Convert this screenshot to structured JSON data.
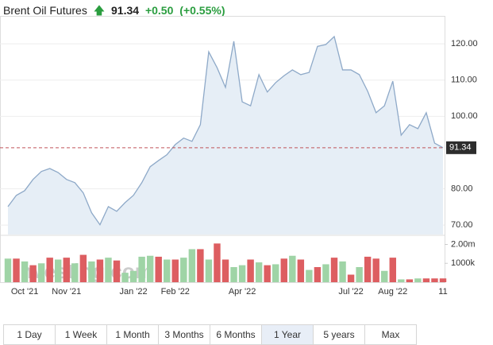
{
  "header": {
    "title": "Brent Oil Futures",
    "price": 91.34,
    "change": "+0.50",
    "change_percent": "(+0.55%)",
    "change_color": "#2a9d3f"
  },
  "chart_data": [
    {
      "type": "area",
      "color": "#8ea9c8",
      "fill": "#e6eef6",
      "grid": true,
      "categories": [
        null,
        null,
        "Oct '21",
        null,
        null,
        null,
        null,
        "Nov '21",
        null,
        null,
        null,
        null,
        null,
        null,
        null,
        "Jan '22",
        null,
        null,
        null,
        null,
        "Feb '22",
        null,
        null,
        null,
        null,
        null,
        null,
        null,
        "Apr '22",
        null,
        null,
        null,
        null,
        null,
        null,
        null,
        null,
        null,
        null,
        null,
        null,
        "Jul '22",
        null,
        null,
        null,
        null,
        "Aug '22",
        null,
        null,
        null,
        null,
        null,
        "11"
      ],
      "values": [
        75.1,
        78.2,
        79.5,
        82.6,
        84.8,
        85.6,
        84.5,
        82.6,
        81.7,
        78.9,
        73.4,
        70.1,
        75.1,
        73.8,
        76.2,
        78.2,
        81.7,
        86.1,
        87.8,
        89.4,
        92.2,
        94.0,
        93.1,
        97.7,
        117.8,
        113.4,
        108.0,
        120.7,
        104.0,
        102.9,
        111.5,
        106.7,
        109.3,
        111.2,
        112.8,
        111.5,
        112.1,
        119.3,
        119.8,
        122.0,
        112.8,
        112.8,
        111.5,
        106.9,
        101.0,
        102.9,
        109.7,
        94.8,
        97.7,
        96.6,
        101.0,
        92.6,
        91.34
      ],
      "ylim": [
        67.4,
        127.7
      ],
      "yticks": [
        {
          "value": 70,
          "label": "70.00"
        },
        {
          "value": 80,
          "label": "80.00"
        },
        {
          "value": 100,
          "label": "100.00"
        },
        {
          "value": 110,
          "label": "110.00"
        },
        {
          "value": 120,
          "label": "120.00"
        }
      ],
      "last_line_color": "#c0555a",
      "watermark": "Investing.com"
    },
    {
      "type": "bar",
      "values": [
        1250000,
        1250000,
        1100000,
        900000,
        1000000,
        1300000,
        1200000,
        1300000,
        1000000,
        1450000,
        1100000,
        1200000,
        1300000,
        1150000,
        500000,
        600000,
        1350000,
        1400000,
        1350000,
        1200000,
        1200000,
        1300000,
        1750000,
        1750000,
        1200000,
        2050000,
        1200000,
        800000,
        900000,
        1200000,
        1050000,
        900000,
        950000,
        1250000,
        1400000,
        1200000,
        650000,
        800000,
        950000,
        1300000,
        1100000,
        400000,
        800000,
        1350000,
        1250000,
        600000,
        1300000,
        150000,
        150000,
        200000,
        200000,
        200000,
        200000
      ],
      "colors": [
        "#9fd4a6",
        "#dd5e61",
        "#9fd4a6",
        "#dd5e61",
        "#9fd4a6",
        "#dd5e61",
        "#9fd4a6",
        "#dd5e61",
        "#9fd4a6",
        "#dd5e61",
        "#9fd4a6",
        "#dd5e61",
        "#9fd4a6",
        "#dd5e61",
        "#9fd4a6",
        "#9fd4a6",
        "#9fd4a6",
        "#9fd4a6",
        "#dd5e61",
        "#9fd4a6",
        "#dd5e61",
        "#9fd4a6",
        "#9fd4a6",
        "#dd5e61",
        "#9fd4a6",
        "#dd5e61",
        "#dd5e61",
        "#9fd4a6",
        "#9fd4a6",
        "#dd5e61",
        "#9fd4a6",
        "#dd5e61",
        "#9fd4a6",
        "#dd5e61",
        "#9fd4a6",
        "#dd5e61",
        "#9fd4a6",
        "#dd5e61",
        "#9fd4a6",
        "#dd5e61",
        "#9fd4a6",
        "#dd5e61",
        "#9fd4a6",
        "#dd5e61",
        "#dd5e61",
        "#9fd4a6",
        "#dd5e61",
        "#9fd4a6",
        "#dd5e61",
        "#9fd4a6",
        "#dd5e61",
        "#dd5e61",
        "#dd5e61"
      ],
      "ylim": [
        0,
        2400000
      ],
      "yticks": [
        {
          "value": 1000000,
          "label": "1000k"
        },
        {
          "value": 2000000,
          "label": "2.00m"
        }
      ]
    }
  ],
  "range_buttons": {
    "labels": [
      "1 Day",
      "1 Week",
      "1 Month",
      "3 Months",
      "6 Months",
      "1 Year",
      "5 years",
      "Max"
    ],
    "selected_index": 5
  }
}
